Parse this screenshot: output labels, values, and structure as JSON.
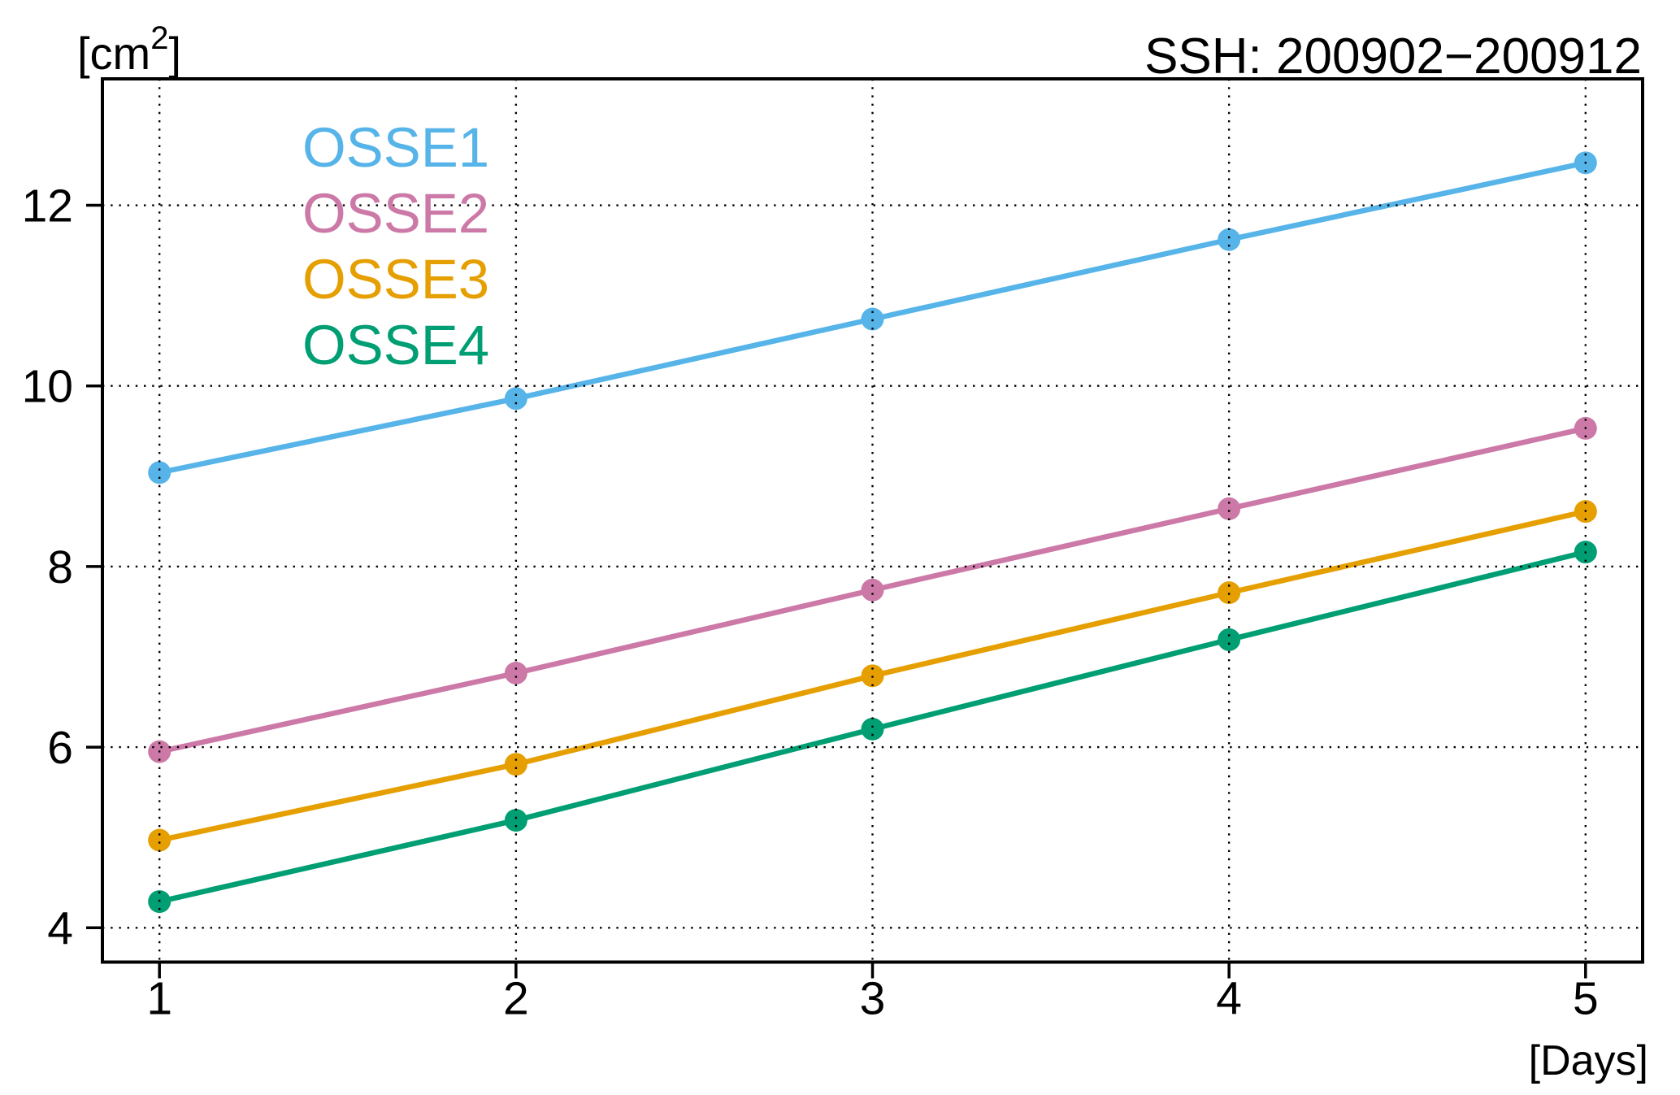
{
  "figure": {
    "background": "#ffffff",
    "title": "SSH: 200902−200912",
    "y_unit": {
      "prefix": "[cm",
      "sup": "2",
      "suffix": "]"
    },
    "x_unit_label": "[Days]"
  },
  "chart_data": {
    "type": "line",
    "title": "SSH: 200902−200912",
    "ylabel": "[cm²]",
    "xlabel": "[Days]",
    "x": [
      1,
      2,
      3,
      4,
      5
    ],
    "x_tick_labels": [
      "1",
      "2",
      "3",
      "4",
      "5"
    ],
    "y_ticks": [
      4,
      6,
      8,
      10,
      12
    ],
    "y_tick_labels": [
      "4",
      "6",
      "8",
      "10",
      "12"
    ],
    "xlim": [
      0.84,
      5.16
    ],
    "ylim": [
      3.62,
      13.4
    ],
    "grid": "dotted black gridlines on both axes, drawn above data",
    "frame": true,
    "legend_position": "inside top-left",
    "marker": "circle",
    "series": [
      {
        "name": "OSSE1",
        "color": "#56B4E9",
        "values": [
          9.04,
          9.86,
          10.74,
          11.62,
          12.47
        ]
      },
      {
        "name": "OSSE2",
        "color": "#CC79A7",
        "values": [
          5.95,
          6.82,
          7.74,
          8.64,
          9.53
        ]
      },
      {
        "name": "OSSE3",
        "color": "#E69F00",
        "values": [
          4.97,
          5.81,
          6.79,
          7.71,
          8.61
        ]
      },
      {
        "name": "OSSE4",
        "color": "#009E73",
        "values": [
          4.29,
          5.19,
          6.2,
          7.19,
          8.16
        ]
      }
    ]
  }
}
